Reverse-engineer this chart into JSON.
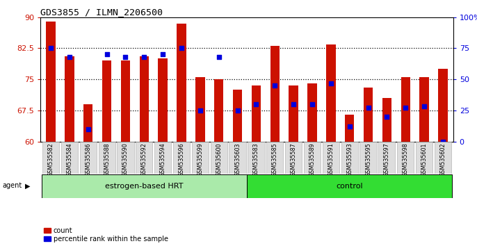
{
  "title": "GDS3855 / ILMN_2206500",
  "samples": [
    "GSM535582",
    "GSM535584",
    "GSM535586",
    "GSM535588",
    "GSM535590",
    "GSM535592",
    "GSM535594",
    "GSM535596",
    "GSM535599",
    "GSM535600",
    "GSM535603",
    "GSM535583",
    "GSM535585",
    "GSM535587",
    "GSM535589",
    "GSM535591",
    "GSM535593",
    "GSM535595",
    "GSM535597",
    "GSM535598",
    "GSM535601",
    "GSM535602"
  ],
  "counts": [
    89.0,
    80.5,
    69.0,
    79.5,
    79.5,
    80.5,
    80.0,
    88.5,
    75.5,
    75.0,
    72.5,
    73.5,
    83.0,
    73.5,
    74.0,
    83.5,
    66.5,
    73.0,
    70.5,
    75.5,
    75.5,
    77.5
  ],
  "percentile_ranks": [
    75,
    68,
    10,
    70,
    68,
    68,
    70,
    75,
    25,
    68,
    25,
    30,
    45,
    30,
    30,
    47,
    12,
    27,
    20,
    27,
    28,
    0
  ],
  "group1_label": "estrogen-based HRT",
  "group1_n": 11,
  "group2_label": "control",
  "group2_n": 11,
  "ylim_left": [
    60,
    90
  ],
  "ylim_right": [
    0,
    100
  ],
  "yticks_left": [
    60,
    67.5,
    75,
    82.5,
    90
  ],
  "yticks_right": [
    0,
    25,
    50,
    75,
    100
  ],
  "bar_color": "#CC1100",
  "dot_color": "#0000DD",
  "grid_yticks": [
    67.5,
    75.0,
    82.5
  ],
  "light_green": "#AAEAAA",
  "bright_green": "#33DD33"
}
